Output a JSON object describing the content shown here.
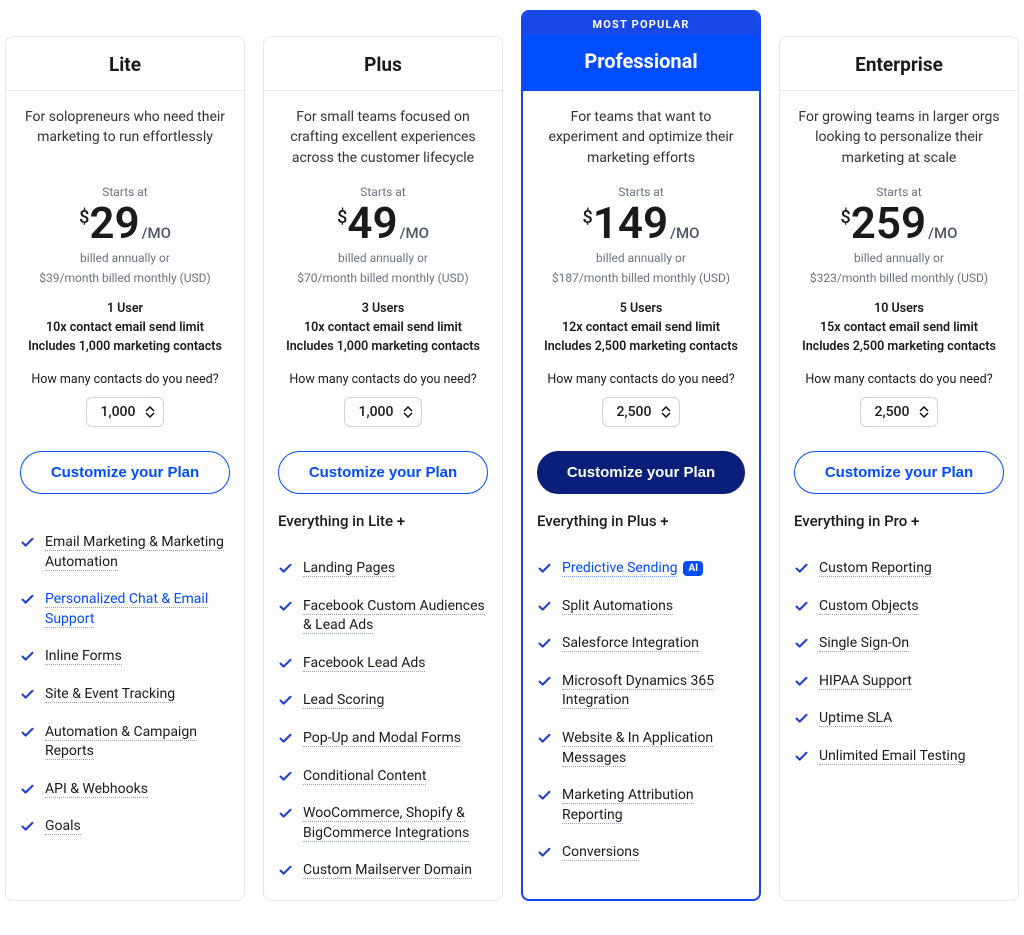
{
  "colors": {
    "brand_blue": "#004cff",
    "deep_blue": "#0b1e7a",
    "border_gray": "#e5e7eb",
    "muted_text": "#6b7280"
  },
  "popular_badge": "MOST POPULAR",
  "common": {
    "starts_at": "Starts at",
    "currency": "$",
    "period": "/MO",
    "billed_note_1": "billed annually or",
    "contacts_label": "How many contacts do you need?",
    "cta_label": "Customize your Plan"
  },
  "plans": [
    {
      "name": "Lite",
      "desc": "For solopreneurs who need their marketing to run effortlessly",
      "price": "29",
      "billed_note_2": "$39/month billed monthly (USD)",
      "detail_users": "1 User",
      "detail_send": "10x contact email send limit",
      "detail_contacts": "Includes 1,000 marketing contacts",
      "stepper_value": "1,000",
      "cta_style": "outline",
      "features_intro": "",
      "features": [
        {
          "label": "Email Marketing & Marketing Automation",
          "link": false
        },
        {
          "label": "Personalized Chat & Email Support",
          "link": true
        },
        {
          "label": "Inline Forms",
          "link": false
        },
        {
          "label": "Site & Event Tracking",
          "link": false
        },
        {
          "label": "Automation & Campaign Reports",
          "link": false
        },
        {
          "label": "API & Webhooks",
          "link": false
        },
        {
          "label": "Goals",
          "link": false
        }
      ]
    },
    {
      "name": "Plus",
      "desc": "For small teams focused on crafting excellent experiences across the customer lifecycle",
      "price": "49",
      "billed_note_2": "$70/month billed monthly (USD)",
      "detail_users": "3 Users",
      "detail_send": "10x contact email send limit",
      "detail_contacts": "Includes 1,000 marketing contacts",
      "stepper_value": "1,000",
      "cta_style": "outline",
      "features_intro": "Everything in Lite +",
      "features": [
        {
          "label": "Landing Pages",
          "link": false
        },
        {
          "label": "Facebook Custom Audiences & Lead Ads",
          "link": false
        },
        {
          "label": "Facebook Lead Ads",
          "link": false
        },
        {
          "label": "Lead Scoring",
          "link": false
        },
        {
          "label": "Pop-Up and Modal Forms",
          "link": false
        },
        {
          "label": "Conditional Content",
          "link": false
        },
        {
          "label": "WooCommerce, Shopify & BigCommerce Integrations",
          "link": false
        },
        {
          "label": "Custom Mailserver Domain",
          "link": false
        }
      ]
    },
    {
      "name": "Professional",
      "desc": "For teams that want to experiment and optimize their marketing efforts",
      "price": "149",
      "billed_note_2": "$187/month billed monthly (USD)",
      "detail_users": "5 Users",
      "detail_send": "12x contact email send limit",
      "detail_contacts": "Includes 2,500 marketing contacts",
      "stepper_value": "2,500",
      "cta_style": "solid",
      "popular": true,
      "features_intro": "Everything in Plus +",
      "features": [
        {
          "label": "Predictive Sending",
          "link": true,
          "ai": true
        },
        {
          "label": "Split Automations",
          "link": false
        },
        {
          "label": "Salesforce Integration",
          "link": false
        },
        {
          "label": "Microsoft Dynamics 365 Integration",
          "link": false
        },
        {
          "label": "Website & In Application Messages",
          "link": false
        },
        {
          "label": "Marketing Attribution Reporting",
          "link": false
        },
        {
          "label": "Conversions",
          "link": false
        }
      ]
    },
    {
      "name": "Enterprise",
      "desc": "For growing teams in larger orgs looking to personalize their marketing at scale",
      "price": "259",
      "billed_note_2": "$323/month billed monthly (USD)",
      "detail_users": "10 Users",
      "detail_send": "15x contact email send limit",
      "detail_contacts": "Includes 2,500 marketing contacts",
      "stepper_value": "2,500",
      "cta_style": "outline",
      "features_intro": "Everything in Pro +",
      "features": [
        {
          "label": "Custom Reporting",
          "link": false
        },
        {
          "label": "Custom Objects",
          "link": false
        },
        {
          "label": "Single Sign-On",
          "link": false
        },
        {
          "label": "HIPAA Support",
          "link": false
        },
        {
          "label": "Uptime SLA",
          "link": false
        },
        {
          "label": "Unlimited Email Testing",
          "link": false
        }
      ]
    }
  ],
  "ai_badge_label": "AI"
}
